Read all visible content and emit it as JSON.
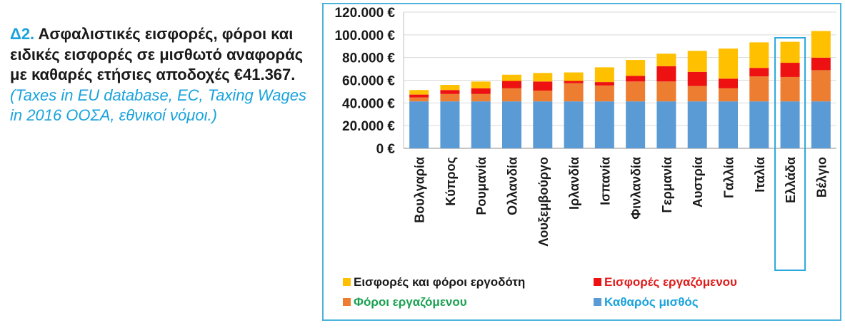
{
  "heading": {
    "number": "Δ2.",
    "text": "Ασφαλιστικές εισφορές, φόροι και ειδικές εισφορές σε μισθωτό αναφοράς με καθαρές ετήσιες αποδοχές €41.367.",
    "source": "(Taxes in EU database, EC, Taxing Wages in 2016 ΟΟΣΑ, εθνικοί νόμοι.)"
  },
  "chart_data": {
    "type": "bar",
    "stacked": true,
    "categories": [
      "Βουλγαρία",
      "Κύπρος",
      "Ρουμανία",
      "Ολλανδία",
      "Λουξεμβούργο",
      "Ιρλανδία",
      "Ισπανία",
      "Φινλανδία",
      "Γερμανία",
      "Αυστρία",
      "Γαλλία",
      "Ιταλία",
      "Ελλάδα",
      "Βέλγιο"
    ],
    "series": [
      {
        "name": "Καθαρός μισθός",
        "color": "#5b9bd5",
        "values": [
          41367,
          41367,
          41367,
          41367,
          41367,
          41367,
          41367,
          41367,
          41367,
          41367,
          41367,
          41367,
          41367,
          41367
        ]
      },
      {
        "name": "Φόροι εργαζόμενου",
        "color": "#ed7d31",
        "values": [
          3500,
          6500,
          6500,
          11500,
          9500,
          16000,
          14000,
          17500,
          17500,
          13500,
          11500,
          22000,
          21500,
          27500
        ]
      },
      {
        "name": "Εισφορές εργαζόμενου",
        "color": "#ee1111",
        "values": [
          2500,
          3500,
          5000,
          6500,
          8000,
          2000,
          3000,
          5000,
          13500,
          12500,
          8500,
          7500,
          12500,
          11000
        ]
      },
      {
        "name": "Εισφορές και φόροι εργοδότη",
        "color": "#ffc000",
        "values": [
          4000,
          4500,
          6000,
          5500,
          7500,
          7500,
          13000,
          14000,
          11000,
          18500,
          26500,
          22500,
          18500,
          23500
        ]
      }
    ],
    "ylim": [
      0,
      120000
    ],
    "yticks": [
      "0 €",
      "20.000 €",
      "40.000 €",
      "60.000 €",
      "80.000 €",
      "100.000 €",
      "120.000 €"
    ],
    "grid": true,
    "legend_position": "bottom",
    "highlight_category": "Ελλάδα",
    "legend_order": [
      "Εισφορές και φόροι εργοδότη",
      "Εισφορές εργαζόμενου",
      "Φόροι εργαζόμενου",
      "Καθαρός μισθός"
    ],
    "legend_label_colors": {
      "Εισφορές και φόροι εργοδότη": "#1a1a1a",
      "Εισφορές εργαζόμενου": "#e11a1a",
      "Φόροι εργαζόμενου": "#1aa152",
      "Καθαρός μισθός": "#1aa3dc"
    }
  }
}
